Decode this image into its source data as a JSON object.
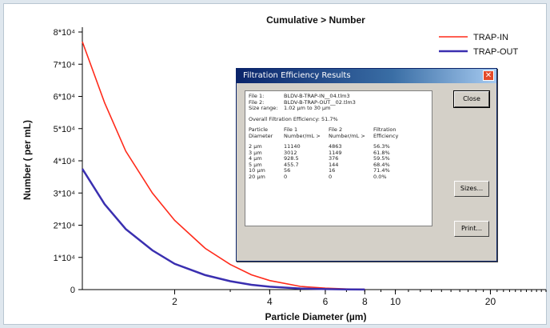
{
  "chart_data": {
    "type": "line",
    "title": "Cumulative > Number",
    "xlabel": "Particle Diameter (µm)",
    "ylabel": "Number ( per mL)",
    "xscale": "log",
    "xlim": [
      1.02,
      30
    ],
    "ylim": [
      0,
      80000
    ],
    "xticks": [
      2,
      4,
      6,
      8,
      10,
      20
    ],
    "yticks": [
      0,
      10000,
      20000,
      30000,
      40000,
      50000,
      60000,
      70000,
      80000
    ],
    "ytick_labels": [
      "0",
      "1*10⁴",
      "2*10⁴",
      "3*10⁴",
      "4*10⁴",
      "5*10⁴",
      "6*10⁴",
      "7*10⁴",
      "8*10⁴"
    ],
    "legend": "top-right",
    "series": [
      {
        "name": "TRAP-IN",
        "color": "#ff2a1a",
        "x": [
          1.02,
          1.2,
          1.4,
          1.7,
          2,
          2.5,
          3,
          3.5,
          4,
          5,
          6,
          7,
          8
        ],
        "y": [
          77000,
          58000,
          43000,
          30000,
          21500,
          12800,
          7800,
          4600,
          2800,
          1000,
          450,
          200,
          80
        ]
      },
      {
        "name": "TRAP-OUT",
        "color": "#3a2fb0",
        "x": [
          1.02,
          1.2,
          1.4,
          1.7,
          2,
          2.5,
          3,
          3.5,
          4,
          5,
          6,
          7,
          8
        ],
        "y": [
          37500,
          26500,
          18800,
          12200,
          8000,
          4500,
          2600,
          1500,
          900,
          350,
          150,
          60,
          20
        ]
      }
    ]
  },
  "dialog": {
    "title": "Filtration Efficiency Results",
    "close_x": "✕",
    "file1_label": "File 1:",
    "file1_value": "BLDV-B-TRAP-IN__04.tlm3",
    "file2_label": "File 2:",
    "file2_value": "BLDV-B-TRAP-OUT__02.tlm3",
    "size_range_label": "Size range:",
    "size_range_value": "1.02 µm to 30 µm",
    "overall": "Overall Filtration Efficiency:  51.7%",
    "headers": [
      [
        "Particle",
        "Diameter"
      ],
      [
        "File 1",
        "Number/mL >"
      ],
      [
        "File 2",
        "Number/mL >"
      ],
      [
        "Filtration",
        "Efficiency"
      ]
    ],
    "rows": [
      [
        "2 µm",
        "11140",
        "4863",
        "56.3%"
      ],
      [
        "3 µm",
        "3012",
        "1149",
        "61.8%"
      ],
      [
        "4 µm",
        "928.5",
        "376",
        "59.5%"
      ],
      [
        "5 µm",
        "455.7",
        "144",
        "68.4%"
      ],
      [
        "10 µm",
        "56",
        "16",
        "71.4%"
      ],
      [
        "20 µm",
        "0",
        "0",
        "0.0%"
      ]
    ],
    "buttons": {
      "close": "Close",
      "sizes": "Sizes...",
      "print": "Print..."
    }
  }
}
